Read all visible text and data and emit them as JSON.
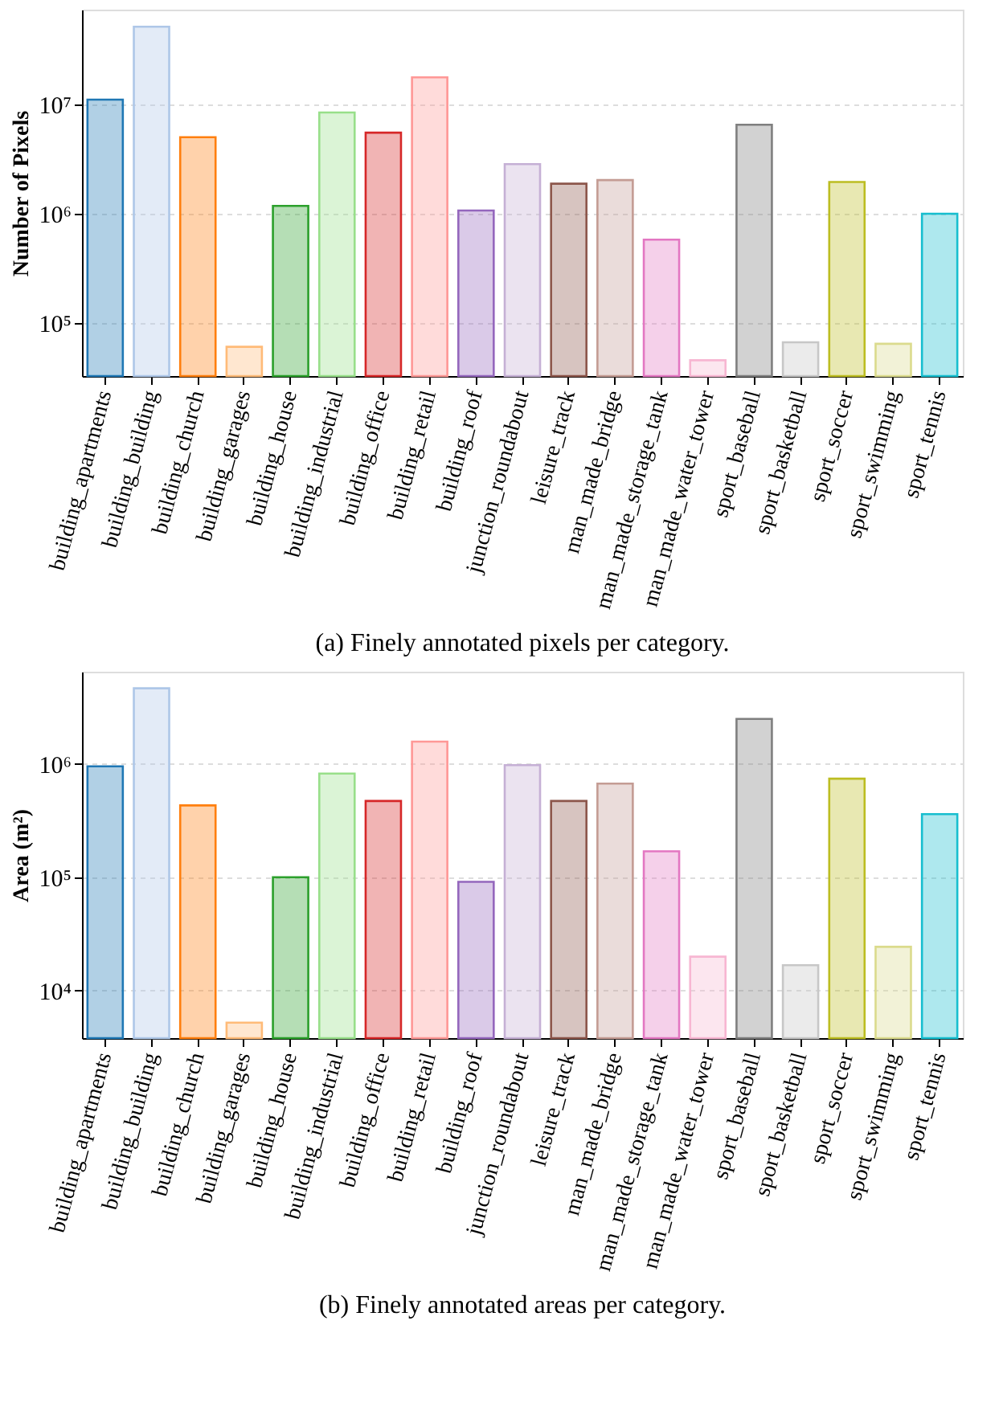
{
  "chart_data": [
    {
      "type": "bar",
      "title": "(a) Finely annotated pixels per category.",
      "ylabel": "Number of Pixels",
      "log": true,
      "grid": "y",
      "categories": [
        "building_apartments",
        "building_building",
        "building_church",
        "building_garages",
        "building_house",
        "building_industrial",
        "building_office",
        "building_retail",
        "building_roof",
        "junction_roundabout",
        "leisure_track",
        "man_made_bridge",
        "man_made_storage_tank",
        "man_made_water_tower",
        "sport_baseball",
        "sport_basketball",
        "sport_soccer",
        "sport_swimming",
        "sport_tennis"
      ],
      "values": [
        11000000,
        51000000,
        5000000,
        61000,
        1180000,
        8400000,
        5500000,
        17600000,
        1070000,
        2840000,
        1880000,
        2030000,
        580000,
        46000,
        6500000,
        67000,
        1950000,
        65000,
        1000000
      ],
      "colors": [
        "#1f77b4",
        "#aec7e8",
        "#ff7f0e",
        "#ffbb78",
        "#2ca02c",
        "#98df8a",
        "#d62728",
        "#ff9896",
        "#9467bd",
        "#c5b0d5",
        "#8c564b",
        "#c49c94",
        "#e377c2",
        "#f7b6d2",
        "#7f7f7f",
        "#c7c7c7",
        "#bcbd22",
        "#dbdb8d",
        "#17becf"
      ],
      "ylim": [
        33000,
        73000000
      ],
      "yticks": [
        {
          "value": 100000,
          "label": "10⁵"
        },
        {
          "value": 1000000,
          "label": "10⁶"
        },
        {
          "value": 10000000,
          "label": "10⁷"
        }
      ]
    },
    {
      "type": "bar",
      "title": "(b) Finely annotated areas per category.",
      "ylabel": "Area (m²)",
      "log": true,
      "grid": "y",
      "categories": [
        "building_apartments",
        "building_building",
        "building_church",
        "building_garages",
        "building_house",
        "building_industrial",
        "building_office",
        "building_retail",
        "building_roof",
        "junction_roundabout",
        "leisure_track",
        "man_made_bridge",
        "man_made_storage_tank",
        "man_made_water_tower",
        "sport_baseball",
        "sport_basketball",
        "sport_soccer",
        "sport_swimming",
        "sport_tennis"
      ],
      "values": [
        950000,
        4640000,
        430000,
        5200,
        100000,
        820000,
        470000,
        1570000,
        91000,
        975000,
        470000,
        670000,
        169000,
        19900,
        2490000,
        16700,
        740000,
        24300,
        360000
      ],
      "colors": [
        "#1f77b4",
        "#aec7e8",
        "#ff7f0e",
        "#ffbb78",
        "#2ca02c",
        "#98df8a",
        "#d62728",
        "#ff9896",
        "#9467bd",
        "#c5b0d5",
        "#8c564b",
        "#c49c94",
        "#e377c2",
        "#f7b6d2",
        "#7f7f7f",
        "#c7c7c7",
        "#bcbd22",
        "#dbdb8d",
        "#17becf"
      ],
      "ylim": [
        3800,
        6500000
      ],
      "yticks": [
        {
          "value": 10000,
          "label": "10⁴"
        },
        {
          "value": 100000,
          "label": "10⁵"
        },
        {
          "value": 1000000,
          "label": "10⁶"
        }
      ]
    }
  ]
}
